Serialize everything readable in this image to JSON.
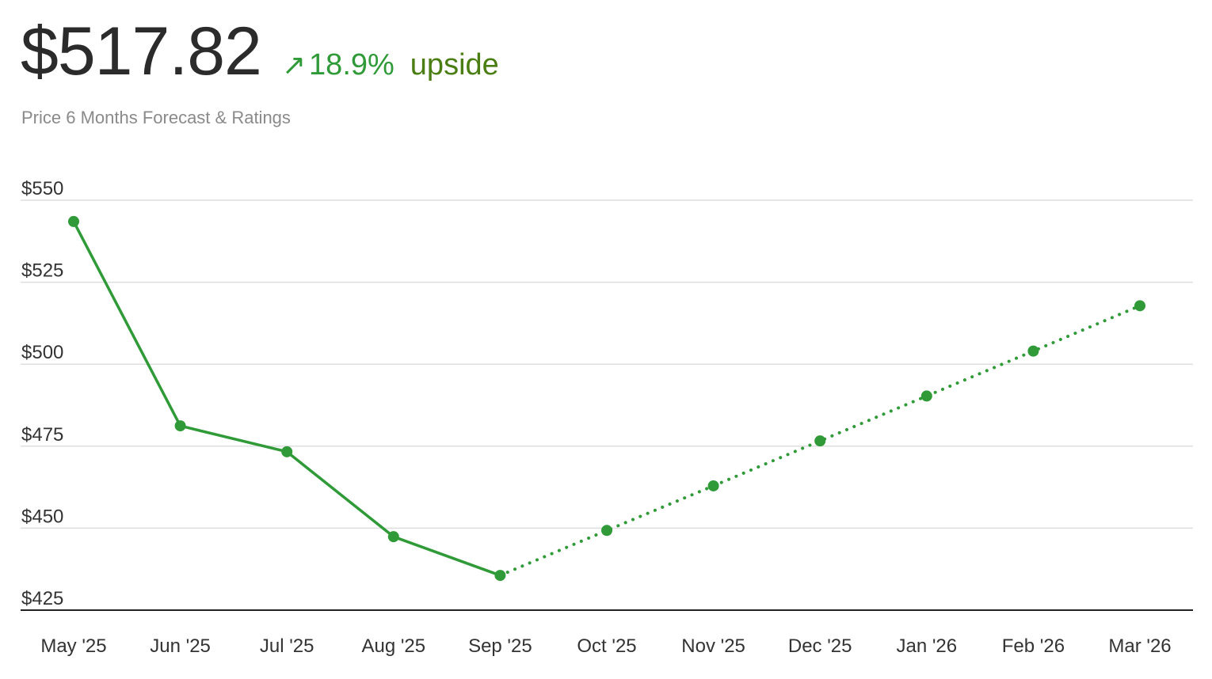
{
  "header": {
    "price": "$517.82",
    "change_pct": "18.9%",
    "direction_word": "upside",
    "subtitle": "Price 6 Months Forecast & Ratings"
  },
  "colors": {
    "line": "#2f9a37",
    "pct_text": "#2f9a37",
    "upside_text": "#4a7d12",
    "grid": "#dedede",
    "axis": "#222222"
  },
  "icons": {
    "change_arrow": "arrow-up-right-icon"
  },
  "chart_data": {
    "type": "line",
    "categories": [
      "May '25",
      "Jun '25",
      "Jul '25",
      "Aug '25",
      "Sep '25",
      "Oct '25",
      "Nov '25",
      "Dec '25",
      "Jan '26",
      "Feb '26",
      "Mar '26"
    ],
    "series": [
      {
        "style": "solid",
        "values": [
          543.5,
          481.2,
          473.3,
          447.4,
          435.6,
          null,
          null,
          null,
          null,
          null,
          null
        ]
      },
      {
        "style": "dotted",
        "values": [
          null,
          null,
          null,
          null,
          435.6,
          449.3,
          462.9,
          476.6,
          490.3,
          504.0,
          517.82
        ]
      }
    ],
    "ylim": [
      425,
      550
    ],
    "yticks": [
      550,
      525,
      500,
      475,
      450,
      425
    ],
    "ytick_labels": [
      "$550",
      "$525",
      "$500",
      "$475",
      "$450",
      "$425"
    ],
    "grid": true,
    "legend": "none"
  }
}
